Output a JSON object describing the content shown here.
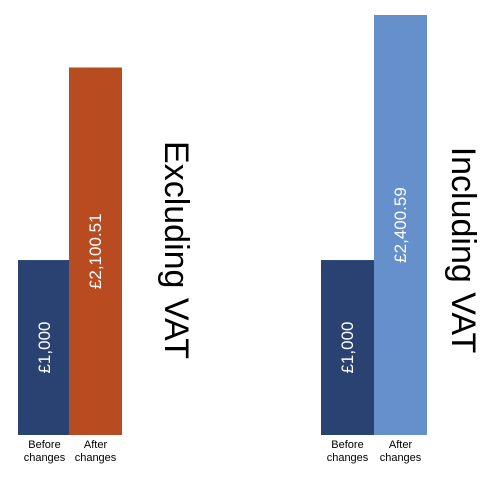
{
  "chart_data": [
    {
      "type": "bar",
      "title": "Excluding VAT",
      "categories": [
        "Before changes",
        "After changes"
      ],
      "values": [
        1000,
        2100.51
      ],
      "value_labels": [
        "£1,000",
        "£2,100.51"
      ],
      "colors": [
        "#2a4271",
        "#b94b21"
      ],
      "ylim": [
        0,
        2400.59
      ],
      "grid": false
    },
    {
      "type": "bar",
      "title": "Including VAT",
      "categories": [
        "Before changes",
        "After changes"
      ],
      "values": [
        1000,
        2400.59
      ],
      "value_labels": [
        "£1,000",
        "£2,400.59"
      ],
      "colors": [
        "#2a4271",
        "#6690cc"
      ],
      "ylim": [
        0,
        2400.59
      ],
      "grid": false
    }
  ]
}
